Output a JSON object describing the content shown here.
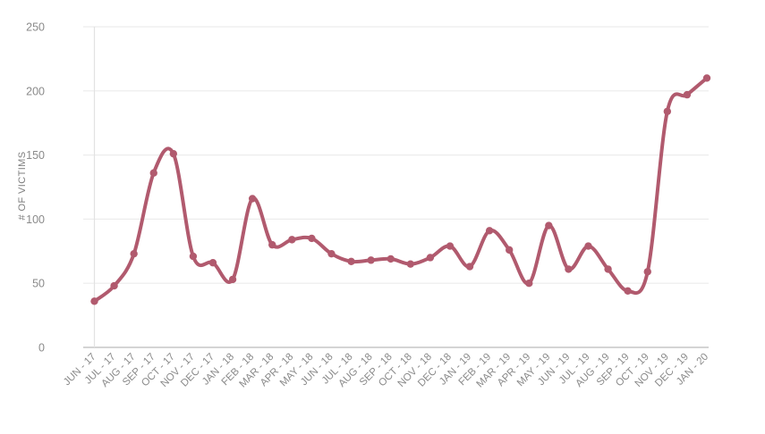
{
  "chart_data": {
    "type": "line",
    "title": "",
    "xlabel": "",
    "ylabel": "# OF VICTIMS",
    "ylim": [
      0,
      250
    ],
    "ytick_interval": 50,
    "yticks": [
      "0",
      "50",
      "100",
      "150",
      "200",
      "250"
    ],
    "grid": true,
    "legend_position": "none",
    "categories": [
      "JUN - 17",
      "JUL - 17",
      "AUG - 17",
      "SEP - 17",
      "OCT - 17",
      "NOV - 17",
      "DEC - 17",
      "JAN - 18",
      "FEB - 18",
      "MAR - 18",
      "APR - 18",
      "MAY - 18",
      "JUN - 18",
      "JUL - 18",
      "AUG - 18",
      "SEP - 18",
      "OCT - 18",
      "NOV - 18",
      "DEC - 18",
      "JAN - 19",
      "FEB - 19",
      "MAR - 19",
      "APR - 19",
      "MAY - 19",
      "JUN - 19",
      "JUL - 19",
      "AUG - 19",
      "SEP - 19",
      "OCT - 19",
      "NOV - 19",
      "DEC - 19",
      "JAN - 20"
    ],
    "series": [
      {
        "name": "# of victims",
        "values": [
          36,
          48,
          73,
          136,
          151,
          71,
          66,
          53,
          116,
          80,
          84,
          85,
          73,
          67,
          68,
          69,
          65,
          70,
          79,
          63,
          91,
          76,
          50,
          95,
          61,
          79,
          61,
          44,
          59,
          184,
          197,
          210
        ]
      }
    ]
  },
  "styles": {
    "line_color": "#b15a6e",
    "marker_color": "#b15a6e",
    "grid_color": "#ececec",
    "x_axis_color": "#c6c6c6",
    "y_axis_color": "#e2e2e2",
    "tick_label_color": "#8a8a8a",
    "axis_title_color": "#7f7f7f",
    "background_color": "#ffffff"
  }
}
